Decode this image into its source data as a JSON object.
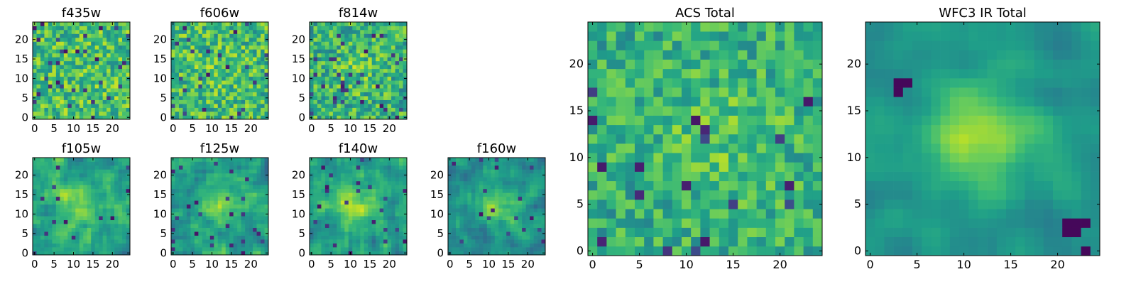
{
  "figure": {
    "panels": [
      {
        "title": "f435w"
      },
      {
        "title": "f606w"
      },
      {
        "title": "f814w"
      },
      {
        "title": "f105w"
      },
      {
        "title": "f125w"
      },
      {
        "title": "f140w"
      },
      {
        "title": "f160w"
      },
      {
        "title": "ACS Total"
      },
      {
        "title": "WFC3 IR Total"
      }
    ]
  },
  "chart_data": [
    {
      "type": "heatmap",
      "title": "f435w",
      "xlabel": "",
      "ylabel": "",
      "grid_size": [
        25,
        25
      ],
      "xlim": [
        -0.5,
        24.5
      ],
      "ylim": [
        -0.5,
        24.5
      ],
      "xticks": [
        0,
        5,
        10,
        15,
        20
      ],
      "yticks": [
        0,
        5,
        10,
        15,
        20
      ],
      "colormap": "viridis",
      "grid": false,
      "pattern": "uniform noise, no visible source"
    },
    {
      "type": "heatmap",
      "title": "f606w",
      "xlabel": "",
      "ylabel": "",
      "grid_size": [
        25,
        25
      ],
      "xlim": [
        -0.5,
        24.5
      ],
      "ylim": [
        -0.5,
        24.5
      ],
      "xticks": [
        0,
        5,
        10,
        15,
        20
      ],
      "yticks": [
        0,
        5,
        10,
        15,
        20
      ],
      "colormap": "viridis",
      "grid": false,
      "pattern": "uniform noise, no visible source"
    },
    {
      "type": "heatmap",
      "title": "f814w",
      "xlabel": "",
      "ylabel": "",
      "grid_size": [
        25,
        25
      ],
      "xlim": [
        -0.5,
        24.5
      ],
      "ylim": [
        -0.5,
        24.5
      ],
      "xticks": [
        0,
        5,
        10,
        15,
        20
      ],
      "yticks": [
        0,
        5,
        10,
        15,
        20
      ],
      "colormap": "viridis",
      "grid": false,
      "pattern": "noise with faint central excess"
    },
    {
      "type": "heatmap",
      "title": "f105w",
      "xlabel": "",
      "ylabel": "",
      "grid_size": [
        25,
        25
      ],
      "xlim": [
        -0.5,
        24.5
      ],
      "ylim": [
        -0.5,
        24.5
      ],
      "xticks": [
        0,
        5,
        10,
        15,
        20
      ],
      "yticks": [
        0,
        5,
        10,
        15,
        20
      ],
      "colormap": "viridis",
      "grid": false,
      "pattern": "noise with central source near (12, 12)"
    },
    {
      "type": "heatmap",
      "title": "f125w",
      "xlabel": "",
      "ylabel": "",
      "grid_size": [
        25,
        25
      ],
      "xlim": [
        -0.5,
        24.5
      ],
      "ylim": [
        -0.5,
        24.5
      ],
      "xticks": [
        0,
        5,
        10,
        15,
        20
      ],
      "yticks": [
        0,
        5,
        10,
        15,
        20
      ],
      "colormap": "viridis",
      "grid": false,
      "pattern": "noise with central source near (12, 12)"
    },
    {
      "type": "heatmap",
      "title": "f140w",
      "xlabel": "",
      "ylabel": "",
      "grid_size": [
        25,
        25
      ],
      "xlim": [
        -0.5,
        24.5
      ],
      "ylim": [
        -0.5,
        24.5
      ],
      "xticks": [
        0,
        5,
        10,
        15,
        20
      ],
      "yticks": [
        0,
        5,
        10,
        15,
        20
      ],
      "colormap": "viridis",
      "grid": false,
      "pattern": "noise with central source near (11, 13)"
    },
    {
      "type": "heatmap",
      "title": "f160w",
      "xlabel": "",
      "ylabel": "",
      "grid_size": [
        25,
        25
      ],
      "xlim": [
        -0.5,
        24.5
      ],
      "ylim": [
        -0.5,
        24.5
      ],
      "xticks": [
        0,
        5,
        10,
        15,
        20
      ],
      "yticks": [
        0,
        5,
        10,
        15,
        20
      ],
      "colormap": "viridis",
      "grid": false,
      "pattern": "noise with bright central source near (12, 12)"
    },
    {
      "type": "heatmap",
      "title": "ACS Total",
      "xlabel": "",
      "ylabel": "",
      "grid_size": [
        25,
        25
      ],
      "xlim": [
        -0.5,
        24.5
      ],
      "ylim": [
        -0.5,
        24.5
      ],
      "xticks": [
        0,
        5,
        10,
        15,
        20
      ],
      "yticks": [
        0,
        5,
        10,
        15,
        20
      ],
      "colormap": "viridis",
      "grid": false,
      "pattern": "noise with moderate central excess"
    },
    {
      "type": "heatmap",
      "title": "WFC3 IR Total",
      "xlabel": "",
      "ylabel": "",
      "grid_size": [
        25,
        25
      ],
      "xlim": [
        -0.5,
        24.5
      ],
      "ylim": [
        -0.5,
        24.5
      ],
      "xticks": [
        0,
        5,
        10,
        15,
        20
      ],
      "yticks": [
        0,
        5,
        10,
        15,
        20
      ],
      "colormap": "viridis",
      "grid": false,
      "pattern": "smooth bright source near (12, 13); dark pixels near (3, 18) and (22, 3)"
    }
  ]
}
